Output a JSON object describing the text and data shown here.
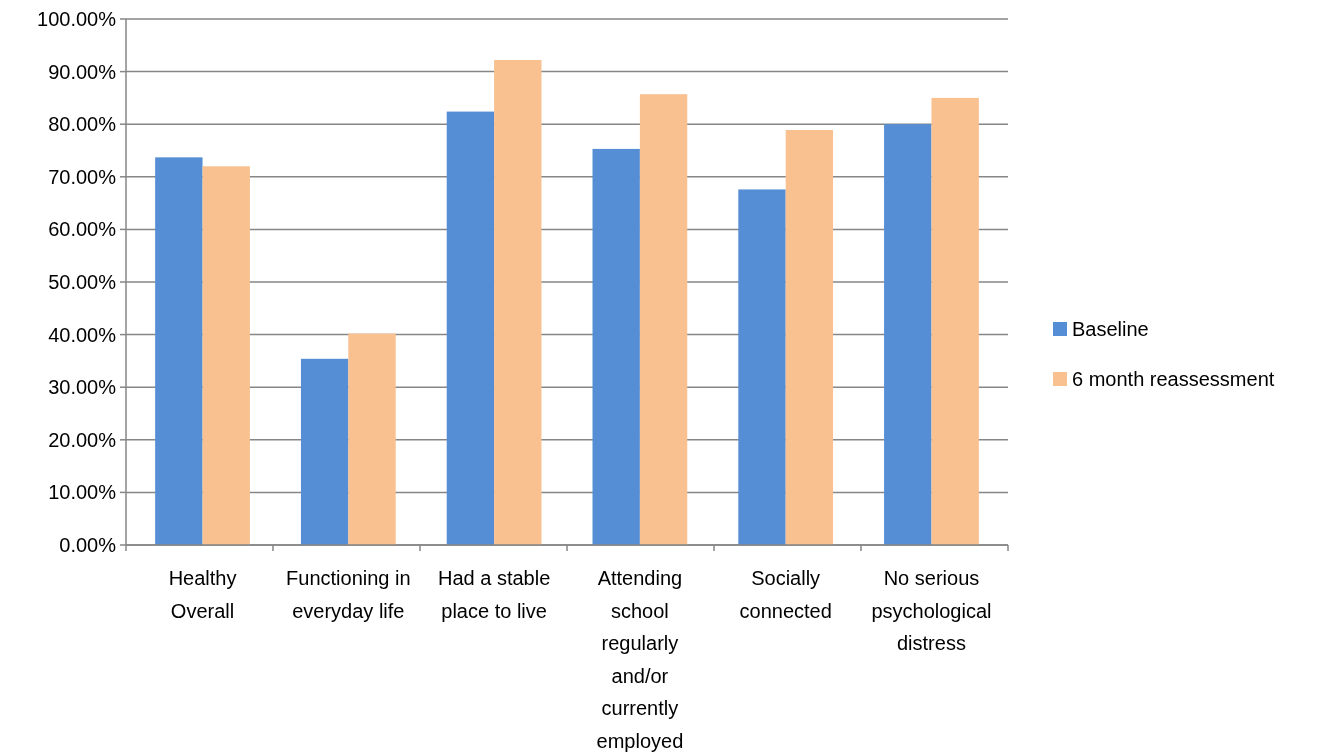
{
  "chart_data": {
    "type": "bar",
    "categories": [
      "Healthy Overall",
      "Functioning in everyday life",
      "Had a stable place to live",
      "Attending school regularly and/or currently employed",
      "Socially connected",
      "No serious psychological distress"
    ],
    "series": [
      {
        "name": "Baseline",
        "color": "#558ed5",
        "values": [
          73.7,
          35.4,
          82.4,
          75.3,
          67.6,
          80.0
        ]
      },
      {
        "name": "6 month reassessment",
        "color": "#f9c090",
        "values": [
          72.0,
          40.2,
          92.2,
          85.7,
          78.9,
          85.0
        ]
      }
    ],
    "ylim": [
      0,
      100
    ],
    "yticks": [
      {
        "value": 0,
        "label": "0.00%"
      },
      {
        "value": 10,
        "label": "10.00%"
      },
      {
        "value": 20,
        "label": "20.00%"
      },
      {
        "value": 30,
        "label": "30.00%"
      },
      {
        "value": 40,
        "label": "40.00%"
      },
      {
        "value": 50,
        "label": "50.00%"
      },
      {
        "value": 60,
        "label": "60.00%"
      },
      {
        "value": 70,
        "label": "70.00%"
      },
      {
        "value": 80,
        "label": "80.00%"
      },
      {
        "value": 90,
        "label": "90.00%"
      },
      {
        "value": 100,
        "label": "100.00%"
      }
    ],
    "grid": "y",
    "legend": "right"
  }
}
